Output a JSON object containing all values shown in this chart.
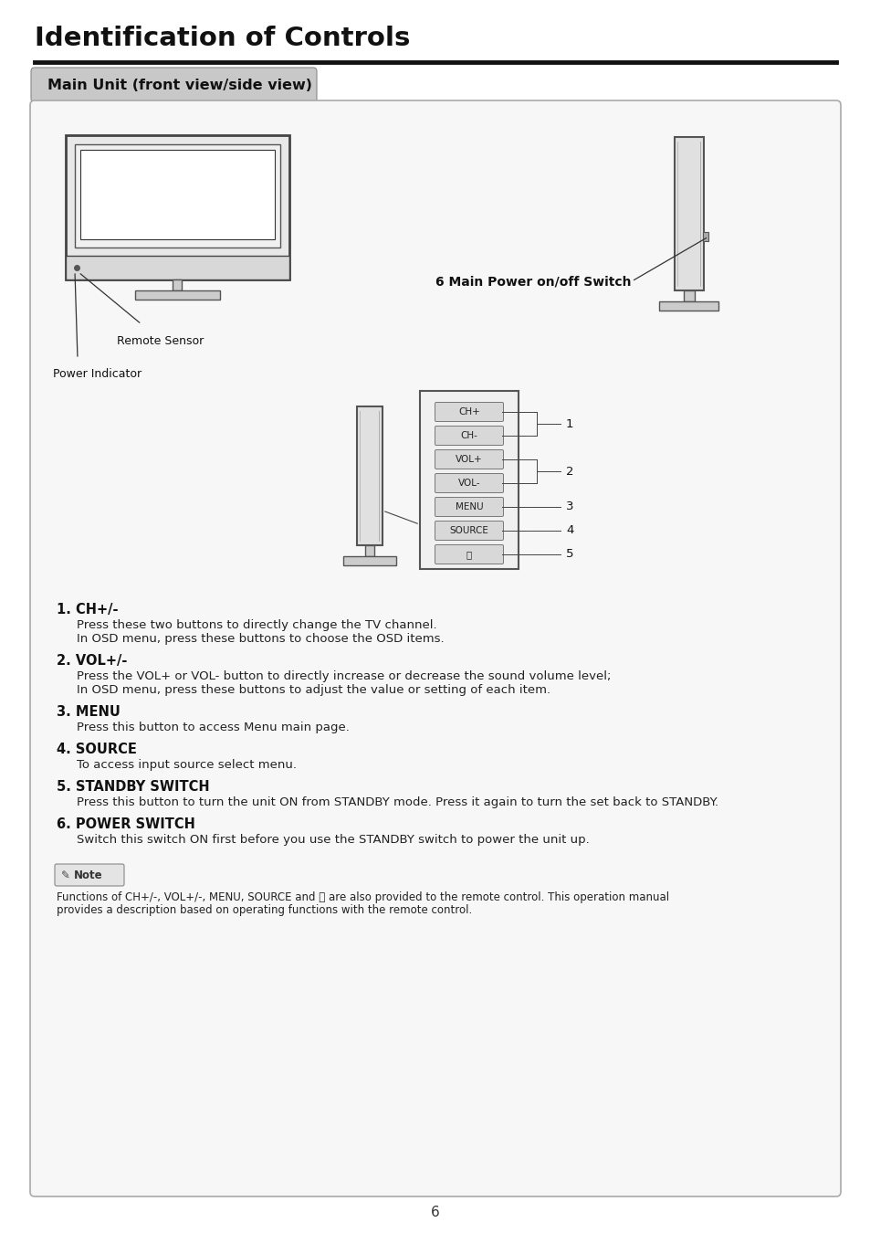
{
  "title": "Identification of Controls",
  "subtitle": "Main Unit (front view/side view)",
  "page_number": "6",
  "bg": "#ffffff",
  "panel_bg": "#f7f7f7",
  "panel_border": "#aaaaaa",
  "subtitle_bg": "#c8c8c8",
  "items": [
    {
      "bold": "1. CH+/-",
      "lines": [
        {
          "text": "Press these two buttons to directly change the TV channel.",
          "indent": true
        },
        {
          "text": "In OSD menu, press these buttons to choose the OSD items.",
          "indent": true
        }
      ]
    },
    {
      "bold": "2. VOL+/-",
      "lines": [
        {
          "text": "Press the VOL+ or VOL- button to directly increase or decrease the sound volume level;",
          "indent": true
        },
        {
          "text": "In OSD menu, press these buttons to adjust the value or setting of each item.",
          "indent": true
        }
      ]
    },
    {
      "bold": "3. MENU",
      "lines": [
        {
          "text": "Press this button to access Menu main page.",
          "indent": true
        }
      ]
    },
    {
      "bold": "4. SOURCE",
      "lines": [
        {
          "text": "To access input source select menu.",
          "indent": true
        }
      ]
    },
    {
      "bold": "5. STANDBY SWITCH",
      "lines": [
        {
          "text": "Press this button to turn the unit ON from STANDBY mode. Press it again to turn the set back to STANDBY.",
          "indent": true
        }
      ]
    },
    {
      "bold": "6. POWER SWITCH",
      "lines": [
        {
          "text": "Switch this switch ON first before you use the STANDBY switch to power the unit up.",
          "indent": true
        }
      ]
    }
  ],
  "note_line1": "Functions of CH+/-, VOL+/-, MENU, SOURCE and ⏻ are also provided to the remote control. This operation manual",
  "note_line2": "provides a description based on operating functions with the remote control."
}
